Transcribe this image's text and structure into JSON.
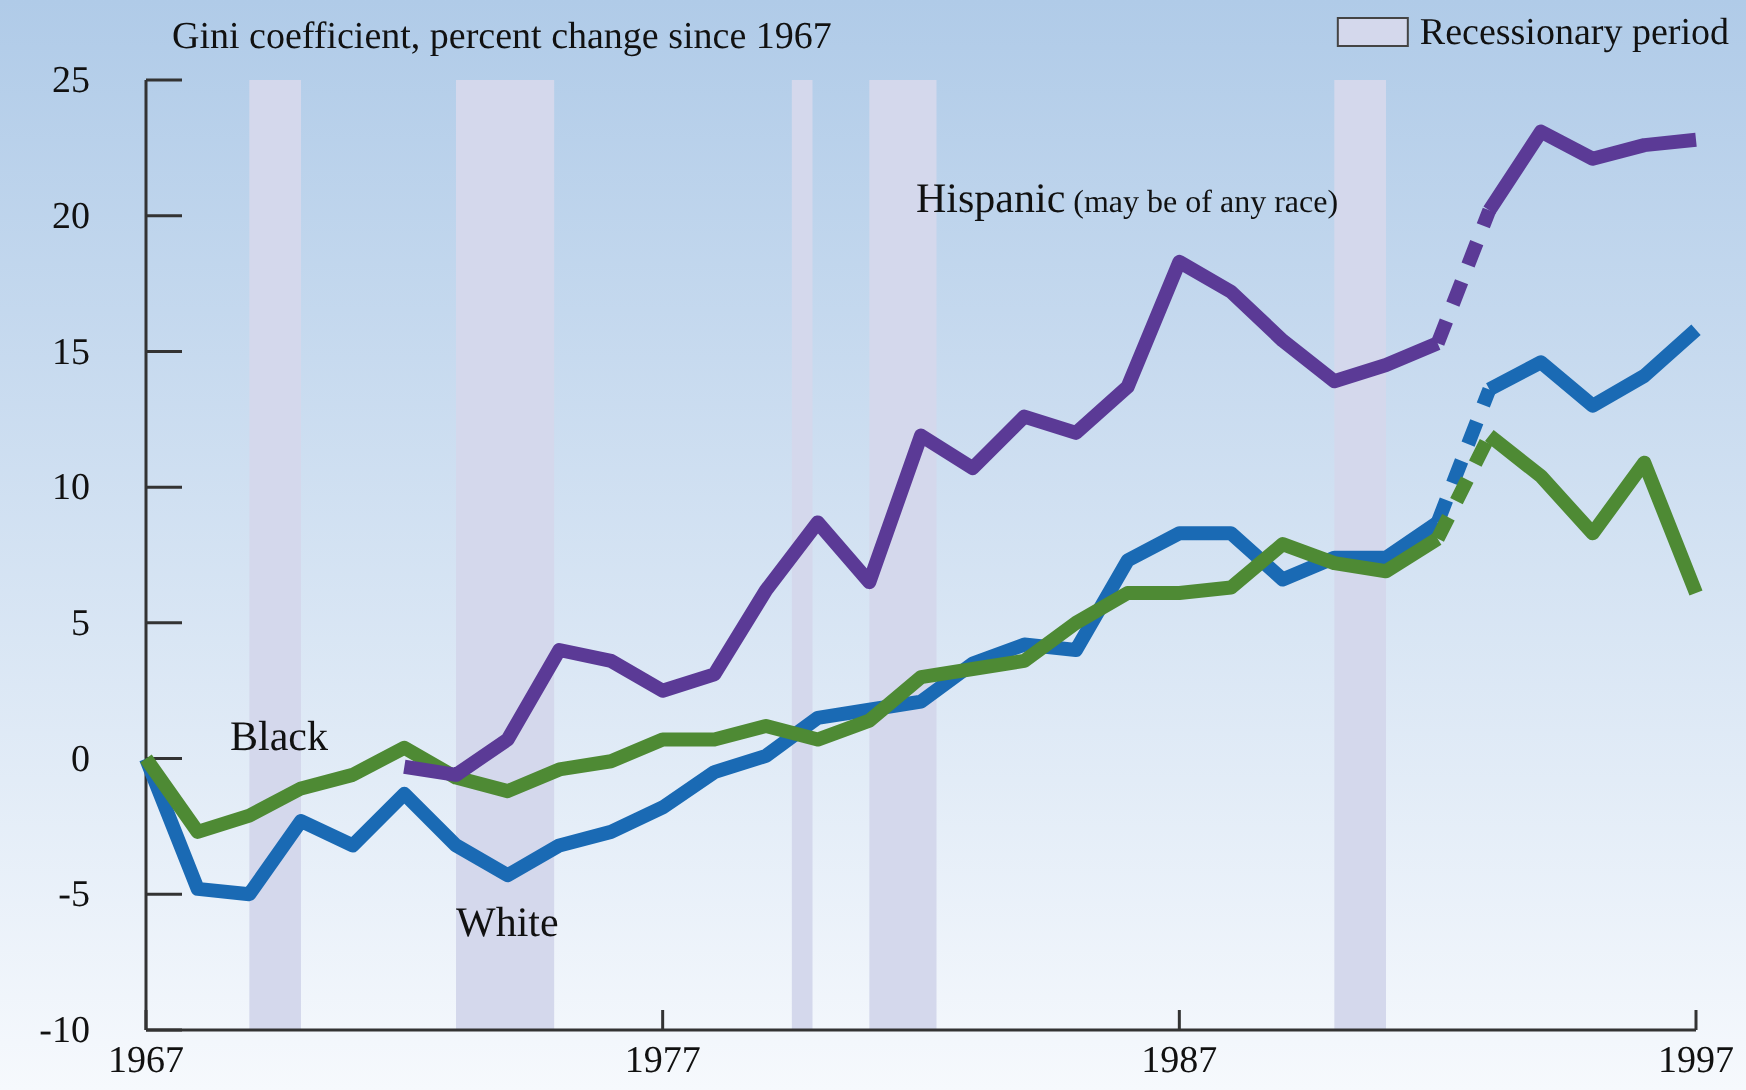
{
  "chart_data": {
    "type": "line",
    "ylabel": "Gini coefficient, percent change since 1967",
    "x": [
      1967,
      1968,
      1969,
      1970,
      1971,
      1972,
      1973,
      1974,
      1975,
      1976,
      1977,
      1978,
      1979,
      1980,
      1981,
      1982,
      1983,
      1984,
      1985,
      1986,
      1987,
      1988,
      1989,
      1990,
      1991,
      1992,
      1993,
      1994,
      1995,
      1996,
      1997
    ],
    "xlim": [
      1967,
      1997
    ],
    "xticks": [
      1967,
      1977,
      1987,
      1997
    ],
    "ylim": [
      -10,
      25
    ],
    "yticks": [
      -10,
      -5,
      0,
      5,
      10,
      15,
      20,
      25
    ],
    "grid": false,
    "legend": "top right",
    "line_style": "solid",
    "marker": "none",
    "bands": [
      {
        "axis": "x",
        "from": 1969,
        "to": 1970,
        "label": "Recessionary period",
        "color": "#d4d8ec"
      },
      {
        "axis": "x",
        "from": 1973,
        "to": 1974.9,
        "color": "#d4d8ec"
      },
      {
        "axis": "x",
        "from": 1979.5,
        "to": 1979.9,
        "color": "#d4d8ec"
      },
      {
        "axis": "x",
        "from": 1981,
        "to": 1982.3,
        "color": "#d4d8ec"
      },
      {
        "axis": "x",
        "from": 1990,
        "to": 1991,
        "color": "#d4d8ec"
      }
    ],
    "series": [
      {
        "name": "White",
        "color": "#1a6ab4",
        "values": [
          0,
          -4.8,
          -5.0,
          -2.3,
          -3.2,
          -1.3,
          -3.2,
          -4.3,
          -3.2,
          -2.7,
          -1.8,
          -0.5,
          0.1,
          1.5,
          1.8,
          2.1,
          3.5,
          4.2,
          4.0,
          7.3,
          8.3,
          8.3,
          6.6,
          7.4,
          7.4,
          8.7,
          null,
          null,
          null,
          null,
          null
        ]
      },
      {
        "color": "#1a6ab4",
        "line_style": "dashed",
        "values": [
          null,
          null,
          null,
          null,
          null,
          null,
          null,
          null,
          null,
          null,
          null,
          null,
          null,
          null,
          null,
          null,
          null,
          null,
          null,
          null,
          null,
          null,
          null,
          null,
          null,
          8.7,
          13.6,
          null,
          null,
          null,
          null
        ]
      },
      {
        "color": "#1a6ab4",
        "values": [
          null,
          null,
          null,
          null,
          null,
          null,
          null,
          null,
          null,
          null,
          null,
          null,
          null,
          null,
          null,
          null,
          null,
          null,
          null,
          null,
          null,
          null,
          null,
          null,
          null,
          null,
          13.6,
          14.6,
          13.0,
          14.1,
          15.8
        ]
      },
      {
        "name": "Black",
        "color": "#4e8a34",
        "values": [
          0,
          -2.7,
          -2.1,
          -1.1,
          -0.6,
          0.4,
          -0.7,
          -1.2,
          -0.4,
          -0.1,
          0.7,
          0.7,
          1.2,
          0.7,
          1.4,
          3.0,
          3.3,
          3.6,
          5.0,
          6.1,
          6.1,
          6.3,
          7.9,
          7.2,
          6.9,
          8.1,
          null,
          null,
          null,
          null,
          null
        ]
      },
      {
        "color": "#4e8a34",
        "line_style": "dashed",
        "values": [
          null,
          null,
          null,
          null,
          null,
          null,
          null,
          null,
          null,
          null,
          null,
          null,
          null,
          null,
          null,
          null,
          null,
          null,
          null,
          null,
          null,
          null,
          null,
          null,
          null,
          8.1,
          11.9,
          null,
          null,
          null,
          null
        ]
      },
      {
        "color": "#4e8a34",
        "values": [
          null,
          null,
          null,
          null,
          null,
          null,
          null,
          null,
          null,
          null,
          null,
          null,
          null,
          null,
          null,
          null,
          null,
          null,
          null,
          null,
          null,
          null,
          null,
          null,
          null,
          null,
          11.9,
          10.4,
          8.3,
          10.9,
          6.1
        ]
      },
      {
        "name": "Hispanic (may be of any race)",
        "color": "#5b3a96",
        "values": [
          null,
          null,
          null,
          null,
          null,
          -0.3,
          -0.6,
          0.7,
          4.0,
          3.6,
          2.5,
          3.1,
          6.2,
          8.7,
          6.5,
          11.9,
          10.7,
          12.6,
          12.0,
          13.7,
          18.3,
          17.2,
          15.4,
          13.9,
          14.5,
          15.3,
          null,
          null,
          null,
          null,
          null
        ]
      },
      {
        "color": "#5b3a96",
        "line_style": "dashed",
        "values": [
          null,
          null,
          null,
          null,
          null,
          null,
          null,
          null,
          null,
          null,
          null,
          null,
          null,
          null,
          null,
          null,
          null,
          null,
          null,
          null,
          null,
          null,
          null,
          null,
          null,
          15.3,
          20.2,
          null,
          null,
          null,
          null
        ]
      },
      {
        "color": "#5b3a96",
        "values": [
          null,
          null,
          null,
          null,
          null,
          null,
          null,
          null,
          null,
          null,
          null,
          null,
          null,
          null,
          null,
          null,
          null,
          null,
          null,
          null,
          null,
          null,
          null,
          null,
          null,
          null,
          20.2,
          23.1,
          22.1,
          22.6,
          22.8
        ]
      }
    ]
  }
}
